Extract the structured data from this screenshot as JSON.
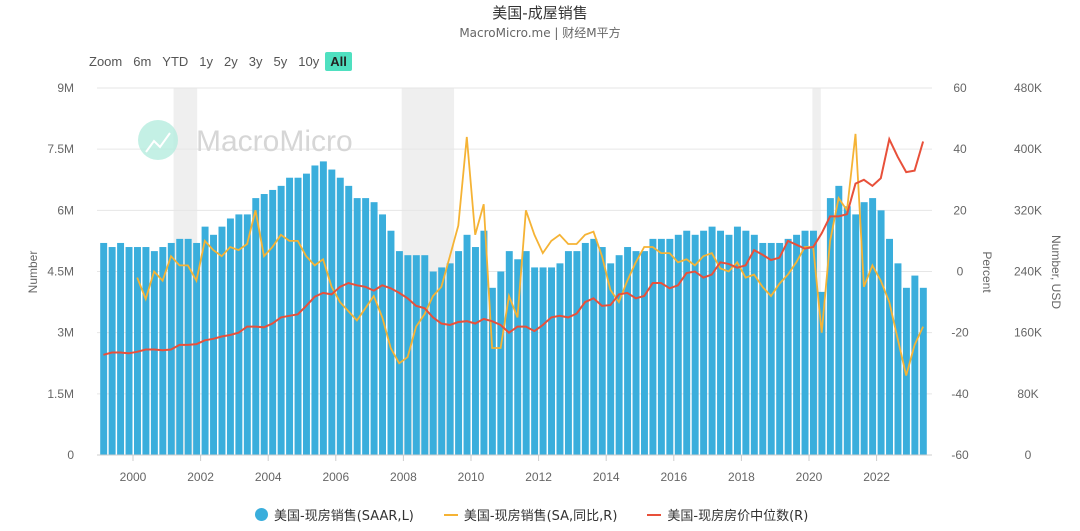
{
  "header": {
    "title": "美国-成屋销售",
    "subtitle": "MacroMicro.me | 财经M平方"
  },
  "range_selector": {
    "label": "Zoom",
    "buttons": [
      "6m",
      "YTD",
      "1y",
      "2y",
      "3y",
      "5y",
      "10y",
      "All"
    ],
    "active": "All"
  },
  "watermark": "MacroMicro",
  "colors": {
    "bars": "#3aaedc",
    "yoy": "#f5b335",
    "price": "#e8503a",
    "recession": "#efefef"
  },
  "chart_data": {
    "type": "bar+line",
    "title": "美国-成屋销售",
    "x_ticks": [
      "2000",
      "2002",
      "2004",
      "2006",
      "2008",
      "2010",
      "2012",
      "2014",
      "2016",
      "2018",
      "2020",
      "2022"
    ],
    "x_range": [
      "1999-01",
      "2023-06"
    ],
    "frequency": "quarterly (approximate)",
    "grid": true,
    "legend_position": "bottom",
    "recessions": [
      [
        2001.2,
        2001.9
      ],
      [
        2007.95,
        2009.5
      ],
      [
        2020.1,
        2020.35
      ]
    ],
    "axes": {
      "left": {
        "title": "Number",
        "ticks": [
          "0",
          "1.5M",
          "3M",
          "4.5M",
          "6M",
          "7.5M",
          "9M"
        ],
        "range": [
          0,
          9
        ]
      },
      "right1": {
        "title": "Percent",
        "ticks": [
          "-60",
          "-40",
          "-20",
          "0",
          "20",
          "40",
          "60"
        ],
        "range": [
          -60,
          60
        ]
      },
      "right2": {
        "title": "Number, USD",
        "ticks": [
          "0",
          "80K",
          "160K",
          "240K",
          "320K",
          "400K",
          "480K"
        ],
        "range": [
          0,
          480
        ]
      }
    },
    "series": [
      {
        "name": "美国-现房销售(SAAR,L)",
        "axis": "left",
        "start": 1999.0,
        "unit": "million",
        "values": [
          5.2,
          5.1,
          5.2,
          5.1,
          5.1,
          5.1,
          5.0,
          5.1,
          5.2,
          5.3,
          5.3,
          5.2,
          5.6,
          5.4,
          5.6,
          5.8,
          5.9,
          5.9,
          6.3,
          6.4,
          6.5,
          6.6,
          6.8,
          6.8,
          6.9,
          7.1,
          7.2,
          7.0,
          6.8,
          6.6,
          6.3,
          6.3,
          6.2,
          5.9,
          5.5,
          5.0,
          4.9,
          4.9,
          4.9,
          4.5,
          4.6,
          4.7,
          5.0,
          5.4,
          5.1,
          5.5,
          4.1,
          4.5,
          5.0,
          4.8,
          5.0,
          4.6,
          4.6,
          4.6,
          4.7,
          5.0,
          5.0,
          5.2,
          5.3,
          5.1,
          4.7,
          4.9,
          5.1,
          5.0,
          5.0,
          5.3,
          5.3,
          5.3,
          5.4,
          5.5,
          5.4,
          5.5,
          5.6,
          5.5,
          5.4,
          5.6,
          5.5,
          5.4,
          5.2,
          5.2,
          5.2,
          5.3,
          5.4,
          5.5,
          5.5,
          4.0,
          6.3,
          6.6,
          6.1,
          5.9,
          6.2,
          6.3,
          6.0,
          5.3,
          4.7,
          4.1,
          4.4,
          4.1
        ]
      },
      {
        "name": "美国-现房销售(SA,同比,R)",
        "axis": "right1",
        "start": 2000.0,
        "unit": "percent",
        "values": [
          -2,
          -9,
          0,
          -3,
          5,
          2,
          2,
          -3,
          10,
          7,
          5,
          8,
          7,
          9,
          20,
          5,
          8,
          12,
          10,
          10,
          5,
          2,
          4,
          -5,
          -10,
          -13,
          -16,
          -12,
          -8,
          -15,
          -25,
          -30,
          -28,
          -18,
          -14,
          -8,
          -5,
          5,
          15,
          44,
          12,
          22,
          -25,
          -25,
          -8,
          -15,
          20,
          12,
          6,
          10,
          12,
          9,
          9,
          12,
          13,
          5,
          -6,
          -10,
          -3,
          3,
          8,
          8,
          6,
          6,
          3,
          4,
          2,
          5,
          6,
          1,
          0,
          3,
          -2,
          -1,
          -5,
          -8,
          -4,
          -1,
          3,
          8,
          8,
          -20,
          10,
          24,
          20,
          45,
          -5,
          2,
          -3,
          -10,
          -22,
          -34,
          -24,
          -18
        ]
      },
      {
        "name": "美国-现房房价中位数(R)",
        "axis": "right2",
        "start": 1999.0,
        "unit": "thousand USD",
        "values": [
          131,
          134,
          134,
          133,
          135,
          138,
          138,
          137,
          138,
          144,
          144,
          145,
          150,
          152,
          155,
          157,
          160,
          168,
          168,
          167,
          172,
          180,
          182,
          184,
          195,
          207,
          212,
          210,
          220,
          225,
          222,
          220,
          215,
          222,
          218,
          212,
          205,
          195,
          192,
          180,
          172,
          170,
          174,
          175,
          172,
          178,
          175,
          170,
          160,
          168,
          168,
          162,
          170,
          180,
          182,
          180,
          185,
          200,
          205,
          195,
          196,
          210,
          212,
          205,
          208,
          225,
          225,
          218,
          222,
          238,
          240,
          232,
          236,
          252,
          250,
          245,
          248,
          268,
          262,
          255,
          258,
          280,
          275,
          270,
          272,
          290,
          312,
          312,
          315,
          355,
          360,
          352,
          362,
          413,
          390,
          370,
          372,
          410
        ]
      }
    ]
  }
}
